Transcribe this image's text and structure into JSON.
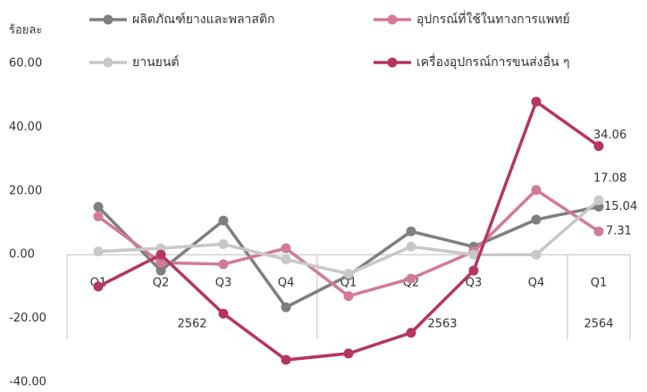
{
  "chart_data": {
    "type": "line",
    "y_label": "ร้อยละ",
    "categories": [
      "Q1",
      "Q2",
      "Q3",
      "Q4",
      "Q1",
      "Q2",
      "Q3",
      "Q4",
      "Q1"
    ],
    "group_labels": [
      "2562",
      "2563",
      "2564"
    ],
    "series": [
      {
        "name": "ผลิตภัณฑ์ยางและพลาสติก",
        "color": "#7f7f7f",
        "values": [
          15,
          -5,
          10.7,
          -16.5,
          -6.5,
          7.3,
          2.5,
          11,
          15.04
        ],
        "value_labels": [
          null,
          null,
          null,
          null,
          null,
          null,
          null,
          null,
          "15.04"
        ]
      },
      {
        "name": "อุปกรณ์ที่ใช้ในทางการแพทย์",
        "color": "#d17a9a",
        "values": [
          12,
          -2.5,
          -3,
          2,
          -13,
          -7.5,
          1,
          20.3,
          7.31
        ],
        "value_labels": [
          null,
          null,
          null,
          null,
          null,
          null,
          null,
          null,
          "7.31"
        ]
      },
      {
        "name": "ยานยนต์",
        "color": "#c8c8c8",
        "values": [
          1,
          2,
          3.3,
          -1.5,
          -6,
          2.5,
          0,
          0,
          17.08
        ],
        "value_labels": [
          null,
          null,
          null,
          null,
          null,
          null,
          null,
          null,
          "17.08"
        ]
      },
      {
        "name": "เครื่องอุปกรณ์การขนส่งอื่น ๆ",
        "color": "#b5365e",
        "values": [
          -10,
          0,
          -18.5,
          -33,
          -31,
          -24.5,
          -5,
          48,
          34.06
        ],
        "value_labels": [
          null,
          null,
          null,
          null,
          null,
          null,
          null,
          null,
          "34.06"
        ]
      }
    ],
    "ylim": [
      -40,
      60
    ],
    "yticks": [
      {
        "value": -40,
        "label": "-40.00"
      },
      {
        "value": -20,
        "label": "-20.00"
      },
      {
        "value": 0,
        "label": "0.00"
      },
      {
        "value": 20,
        "label": "20.00"
      },
      {
        "value": 40,
        "label": "40.00"
      },
      {
        "value": 60,
        "label": "60.00"
      }
    ],
    "grid": false
  }
}
